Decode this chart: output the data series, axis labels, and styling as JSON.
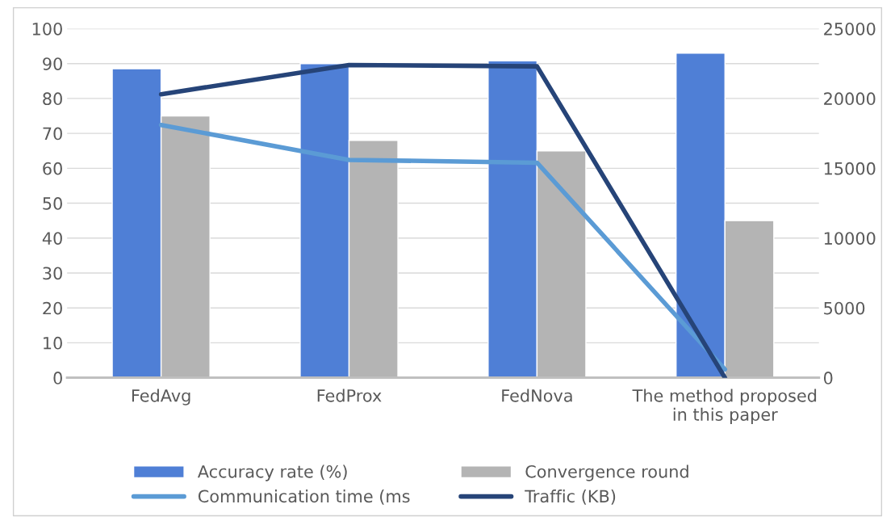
{
  "chart_data": {
    "type": "bar",
    "categories": [
      "FedAvg",
      "FedProx",
      "FedNova",
      "The method proposed\nin this paper"
    ],
    "series": [
      {
        "name": "Accuracy rate (%)",
        "color": "#4f7fd6",
        "values": [
          88.5,
          90,
          90.8,
          93
        ]
      },
      {
        "name": "Convergence round",
        "color": "#b4b4b4",
        "values": [
          75,
          68,
          65,
          45
        ]
      },
      {
        "name": "Communication time (ms",
        "type": "line",
        "axis": "y2",
        "color": "#5b9bd5",
        "values": [
          18100,
          15600,
          15400,
          600
        ]
      },
      {
        "name": "Traffic (KB)",
        "type": "line",
        "axis": "y2",
        "color": "#264478",
        "values": [
          20300,
          22400,
          22300,
          0
        ]
      }
    ],
    "ylim": [
      0,
      100
    ],
    "yticks": [
      0,
      10,
      20,
      30,
      40,
      50,
      60,
      70,
      80,
      90,
      100
    ],
    "y2lim": [
      0,
      25000
    ],
    "y2ticks": [
      0,
      5000,
      10000,
      15000,
      20000,
      25000
    ],
    "grid": "y",
    "legend": "bottom"
  }
}
